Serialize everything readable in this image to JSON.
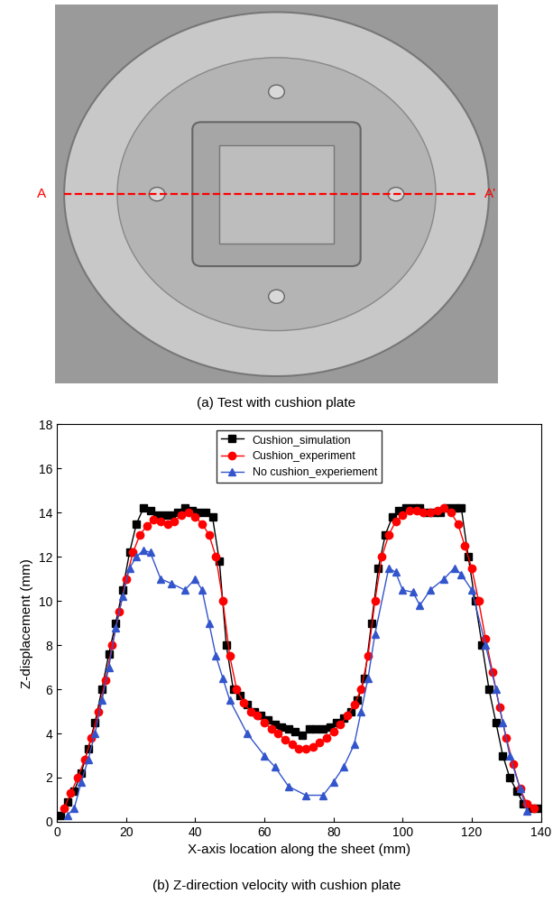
{
  "figure_a": {
    "caption": "(a) Test with cushion plate",
    "section_labels": [
      "A",
      "A'"
    ]
  },
  "chart_data": {
    "type": "line",
    "title": "(b) Z-direction velocity with cushion plate",
    "x_label": "X-axis location along the sheet (mm)",
    "y_label": "Z-displacement (mm)",
    "xlim": [
      0,
      140
    ],
    "xticks": [
      0,
      20,
      40,
      60,
      80,
      100,
      120,
      140
    ],
    "ylim": [
      0,
      18
    ],
    "yticks": [
      0,
      2,
      4,
      6,
      8,
      10,
      12,
      14,
      16,
      18
    ],
    "grid": false,
    "legend": "upper center",
    "series": [
      {
        "name": "Cushion_simulation",
        "color": "#000000",
        "marker": "square",
        "line_style": "solid",
        "x": [
          1,
          3,
          5,
          7,
          9,
          11,
          13,
          15,
          17,
          19,
          21,
          23,
          25,
          27,
          29,
          31,
          33,
          35,
          37,
          39,
          41,
          43,
          45,
          47,
          49,
          51,
          53,
          55,
          57,
          59,
          61,
          63,
          65,
          67,
          69,
          71,
          73,
          75,
          77,
          79,
          81,
          83,
          85,
          87,
          89,
          91,
          93,
          95,
          97,
          99,
          101,
          103,
          105,
          107,
          109,
          111,
          113,
          115,
          117,
          119,
          121,
          123,
          125,
          127,
          129,
          131,
          133,
          135,
          137,
          139
        ],
        "values": [
          0.3,
          0.9,
          1.4,
          2.2,
          3.3,
          4.5,
          6.0,
          7.6,
          9.0,
          10.5,
          12.2,
          13.5,
          14.2,
          14.1,
          13.9,
          13.9,
          13.9,
          14.0,
          14.2,
          14.1,
          14.0,
          14.0,
          13.8,
          11.8,
          8.0,
          6.0,
          5.7,
          5.3,
          5.0,
          4.8,
          4.6,
          4.4,
          4.3,
          4.2,
          4.1,
          3.9,
          4.2,
          4.2,
          4.2,
          4.3,
          4.5,
          4.7,
          5.0,
          5.5,
          6.5,
          9.0,
          11.5,
          13.0,
          13.8,
          14.1,
          14.2,
          14.2,
          14.2,
          14.0,
          14.0,
          14.0,
          14.2,
          14.2,
          14.2,
          12.0,
          10.0,
          8.0,
          6.0,
          4.5,
          3.0,
          2.0,
          1.4,
          0.8,
          0.6,
          0.6
        ]
      },
      {
        "name": "Cushion_experiment",
        "color": "#ff0000",
        "marker": "circle",
        "line_style": "solid",
        "x": [
          2,
          4,
          6,
          8,
          10,
          12,
          14,
          16,
          18,
          20,
          22,
          24,
          26,
          28,
          30,
          32,
          34,
          36,
          38,
          40,
          42,
          44,
          46,
          48,
          50,
          52,
          54,
          56,
          58,
          60,
          62,
          64,
          66,
          68,
          70,
          72,
          74,
          76,
          78,
          80,
          82,
          84,
          86,
          88,
          90,
          92,
          94,
          96,
          98,
          100,
          102,
          104,
          106,
          108,
          110,
          112,
          114,
          116,
          118,
          120,
          122,
          124,
          126,
          128,
          130,
          132,
          134,
          136,
          138
        ],
        "values": [
          0.6,
          1.3,
          2.0,
          2.8,
          3.8,
          5.0,
          6.4,
          8.0,
          9.5,
          11.0,
          12.2,
          13.0,
          13.4,
          13.7,
          13.6,
          13.5,
          13.6,
          13.9,
          14.0,
          13.8,
          13.5,
          13.0,
          12.0,
          10.0,
          7.5,
          6.0,
          5.4,
          5.0,
          4.8,
          4.5,
          4.2,
          4.0,
          3.7,
          3.5,
          3.3,
          3.3,
          3.4,
          3.6,
          3.8,
          4.1,
          4.4,
          4.8,
          5.3,
          6.0,
          7.5,
          10.0,
          12.0,
          13.0,
          13.6,
          13.9,
          14.1,
          14.1,
          14.0,
          14.0,
          14.1,
          14.2,
          14.0,
          13.5,
          12.5,
          11.5,
          10.0,
          8.3,
          6.8,
          5.2,
          3.8,
          2.6,
          1.5,
          0.8,
          0.6
        ]
      },
      {
        "name": "No cushion_experiement",
        "color": "#3355cc",
        "marker": "triangle",
        "line_style": "solid",
        "x": [
          3,
          5,
          7,
          9,
          11,
          13,
          15,
          17,
          19,
          21,
          23,
          25,
          27,
          30,
          33,
          37,
          40,
          42,
          44,
          46,
          48,
          50,
          55,
          60,
          63,
          67,
          72,
          77,
          80,
          83,
          86,
          88,
          90,
          92,
          96,
          98,
          100,
          103,
          105,
          108,
          112,
          115,
          117,
          120,
          124,
          127,
          129,
          131,
          134,
          136
        ],
        "values": [
          0.3,
          0.6,
          1.8,
          2.8,
          4.0,
          5.5,
          7.0,
          8.8,
          10.2,
          11.5,
          12.0,
          12.3,
          12.2,
          11.0,
          10.8,
          10.5,
          11.0,
          10.5,
          9.0,
          7.5,
          6.5,
          5.5,
          4.0,
          3.0,
          2.5,
          1.6,
          1.2,
          1.2,
          1.8,
          2.5,
          3.5,
          5.0,
          6.5,
          8.5,
          11.5,
          11.3,
          10.5,
          10.4,
          9.8,
          10.5,
          11.0,
          11.5,
          11.2,
          10.5,
          8.0,
          6.0,
          4.5,
          3.0,
          1.5,
          0.5
        ]
      }
    ]
  }
}
